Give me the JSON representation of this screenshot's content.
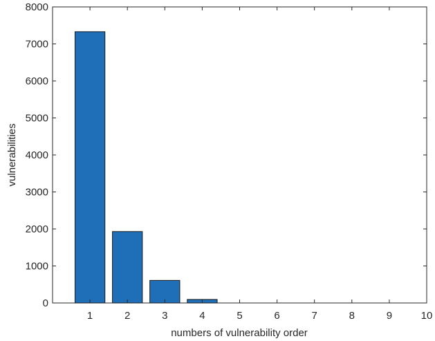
{
  "chart_data": {
    "type": "bar",
    "title": "",
    "xlabel": "numbers of vulnerability order",
    "ylabel": "vulnerabilities",
    "categories": [
      1,
      2,
      3,
      4,
      5,
      6,
      7,
      8,
      9,
      10
    ],
    "values": [
      7330,
      1930,
      610,
      95,
      0,
      0,
      0,
      0,
      0,
      0
    ],
    "xlim": [
      0,
      10
    ],
    "ylim": [
      0,
      8000
    ],
    "xticks": [
      1,
      2,
      3,
      4,
      5,
      6,
      7,
      8,
      9,
      10
    ],
    "yticks": [
      0,
      1000,
      2000,
      3000,
      4000,
      5000,
      6000,
      7000,
      8000
    ],
    "grid": false,
    "bar_color": "#1f6fb8",
    "bar_edge_color": "#1a1a1a"
  }
}
